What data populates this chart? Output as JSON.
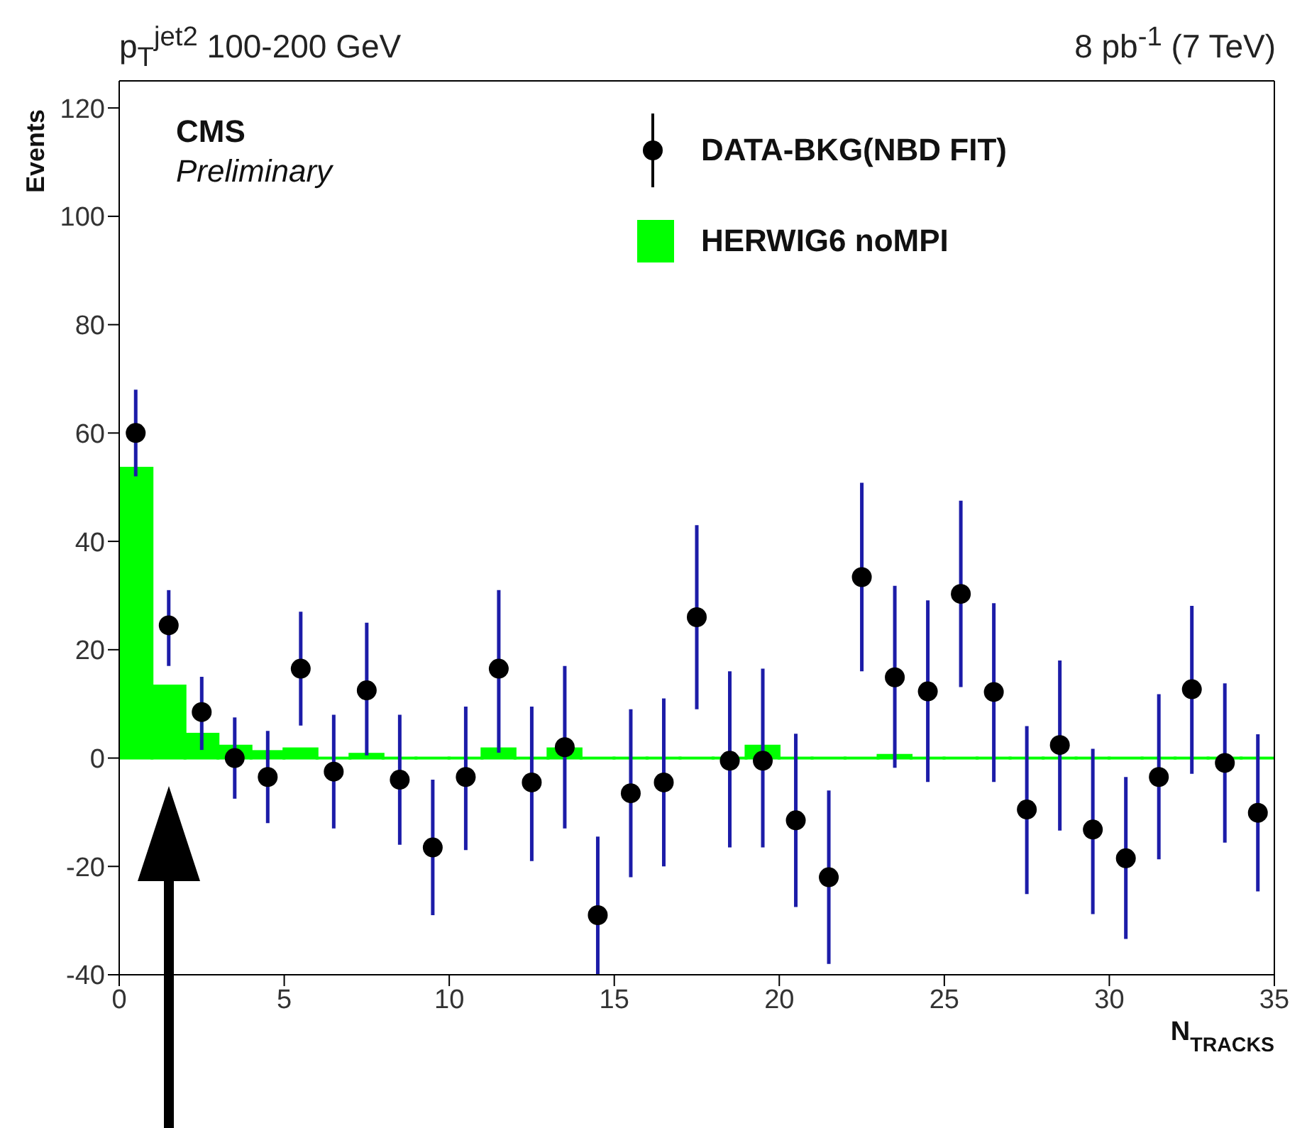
{
  "chart_data": {
    "type": "scatter",
    "title": "p$_{T}$$^{jet2}$ 100-200 GeV",
    "subtitle": "8 pb$^{-1}$ (7 TeV)",
    "xlabel": "N$_{TRACKS}$",
    "ylabel": "Events",
    "annotations": [
      "CMS",
      "Preliminary"
    ],
    "xlim": [
      0,
      35
    ],
    "xticks": [
      0,
      5,
      10,
      15,
      20,
      25,
      30,
      35
    ],
    "ylim": [
      -40,
      125
    ],
    "yticks": [
      -40,
      -20,
      0,
      20,
      40,
      60,
      80,
      100,
      120
    ],
    "legend": "top right",
    "marker": "circle",
    "series": [
      {
        "name": "DATA-BKG(NBD FIT)",
        "color": "#000000",
        "x": [
          0.5,
          1.5,
          2.5,
          3.5,
          4.5,
          5.5,
          6.5,
          7.5,
          8.5,
          9.5,
          10.5,
          11.5,
          12.5,
          13.5,
          14.5,
          15.5,
          16.5,
          17.5,
          18.5,
          19.5,
          20.5,
          21.5,
          22.5,
          23.5,
          24.5,
          25.5,
          26.5,
          27.5,
          28.5,
          29.5,
          30.5,
          31.5,
          32.5,
          33.5,
          34.5
        ],
        "values": [
          60,
          24.5,
          8.5,
          0,
          -3.5,
          16.5,
          -2.5,
          12.5,
          -4,
          -16.5,
          -3.5,
          16.5,
          -4.5,
          2,
          -29,
          -6.5,
          -4.5,
          26,
          -0.5,
          -0.5,
          -11.5,
          -22,
          33.4,
          14.9,
          12.3,
          30.3,
          12.2,
          -9.5,
          2.4,
          -13.2,
          -18.5,
          -3.5,
          12.7,
          -0.9,
          -10.1
        ],
        "errors": [
          [
            52,
            68
          ],
          [
            17,
            31
          ],
          [
            1.5,
            15
          ],
          [
            -7.5,
            7.5
          ],
          [
            -12,
            5
          ],
          [
            6,
            27
          ],
          [
            -13,
            8
          ],
          [
            0.5,
            25
          ],
          [
            -16,
            8
          ],
          [
            -29,
            -4
          ],
          [
            -17,
            9.5
          ],
          [
            1,
            31
          ],
          [
            -19,
            9.5
          ],
          [
            -13,
            17
          ],
          [
            -40,
            -14.5
          ],
          [
            -22,
            9
          ],
          [
            -20,
            11
          ],
          [
            9,
            43
          ],
          [
            -16.5,
            16
          ],
          [
            -16.5,
            16.5
          ],
          [
            -27.5,
            4.5
          ],
          [
            -38,
            -6
          ],
          [
            16,
            50.8
          ],
          [
            -1.8,
            31.8
          ],
          [
            -4.4,
            29.1
          ],
          [
            13.1,
            47.5
          ],
          [
            -4.4,
            28.6
          ],
          [
            -25.1,
            5.9
          ],
          [
            -13.4,
            18
          ],
          [
            -28.8,
            1.7
          ],
          [
            -33.4,
            -3.5
          ],
          [
            -18.7,
            11.8
          ],
          [
            -2.9,
            28.1
          ],
          [
            -15.6,
            13.8
          ],
          [
            -24.6,
            4.4
          ]
        ]
      },
      {
        "name": "HERWIG6 noMPI",
        "type": "histogram",
        "color": "#00ff00",
        "bins": [
          0,
          1,
          2,
          3,
          4,
          5,
          6,
          7,
          8,
          9,
          10,
          11,
          12,
          13,
          14,
          15,
          16,
          17,
          18,
          19,
          20,
          21,
          22,
          23,
          24,
          25,
          26,
          27,
          28,
          29,
          30,
          31,
          32,
          33,
          34,
          35
        ],
        "values": [
          53.5,
          13.3,
          4.4,
          2.2,
          1.2,
          1.7,
          0,
          0.7,
          0,
          0,
          0,
          1.7,
          0,
          1.7,
          0,
          0,
          0,
          0,
          0,
          2.2,
          0,
          0,
          0,
          0.5,
          0,
          0,
          0,
          0,
          0,
          0,
          0,
          0,
          0,
          0,
          0
        ]
      }
    ]
  }
}
